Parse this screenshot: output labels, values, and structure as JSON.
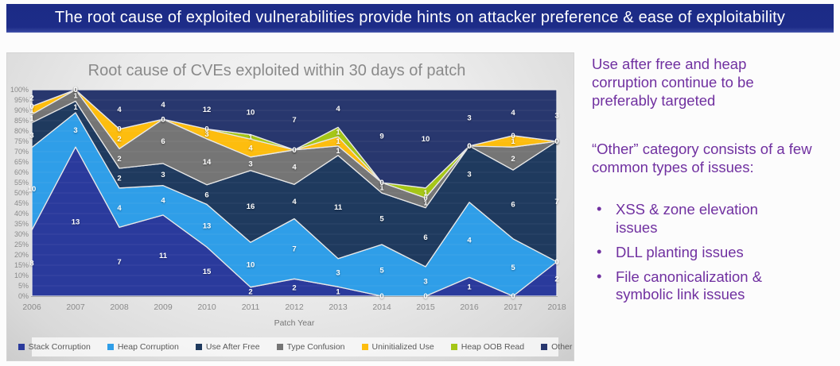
{
  "banner": {
    "title": "The root cause of exploited vulnerabilities provide hints on attacker preference & ease of exploitability",
    "bg_color": "#1c2b86",
    "text_color": "#ffffff"
  },
  "chart_data": {
    "type": "area",
    "variant": "100%-stacked-area-with-data-labels",
    "title": "Root cause of CVEs exploited within 30 days of patch",
    "xlabel": "Patch Year",
    "categories": [
      "2006",
      "2007",
      "2008",
      "2009",
      "2010",
      "2011",
      "2012",
      "2013",
      "2014",
      "2015",
      "2016",
      "2017",
      "2018"
    ],
    "series": [
      {
        "name": "Stack Corruption",
        "color": "#2a3a9c",
        "values": [
          8,
          13,
          7,
          11,
          15,
          2,
          2,
          1,
          0,
          0,
          1,
          0,
          2
        ]
      },
      {
        "name": "Heap Corruption",
        "color": "#2f9ee8",
        "values": [
          10,
          3,
          4,
          4,
          13,
          10,
          7,
          3,
          5,
          3,
          4,
          5,
          0
        ]
      },
      {
        "name": "Use After Free",
        "color": "#1f3a5e",
        "values": [
          3,
          1,
          2,
          3,
          6,
          16,
          4,
          11,
          5,
          6,
          3,
          6,
          7
        ]
      },
      {
        "name": "Type Confusion",
        "color": "#757575",
        "values": [
          1,
          1,
          2,
          6,
          14,
          3,
          4,
          1,
          1,
          1,
          0,
          2,
          0
        ]
      },
      {
        "name": "Uninitialized Use",
        "color": "#fdbd0e",
        "values": [
          1,
          0,
          2,
          0,
          3,
          4,
          0,
          1,
          0,
          0,
          0,
          1,
          0
        ]
      },
      {
        "name": "Heap OOB Read",
        "color": "#a5c616",
        "values": [
          0,
          0,
          0,
          0,
          0,
          1,
          0,
          1,
          0,
          1,
          0,
          0,
          0
        ]
      },
      {
        "name": "Other",
        "color": "#28376e",
        "values": [
          2,
          0,
          4,
          4,
          12,
          10,
          7,
          4,
          9,
          10,
          3,
          4,
          3
        ]
      }
    ],
    "ylim": [
      0,
      100
    ],
    "y_tick_step_percent": 5,
    "y_tick_suffix": "%",
    "gridlines": true,
    "legend_position": "bottom"
  },
  "right_panel": {
    "para1": "Use after free and heap corruption continue to be preferably targeted",
    "para2": "“Other” category consists of a few common types of issues:",
    "bullet_glyph": "•",
    "bullets": [
      "XSS & zone elevation issues",
      "DLL planting issues",
      "File canonicalization & symbolic link issues"
    ]
  }
}
